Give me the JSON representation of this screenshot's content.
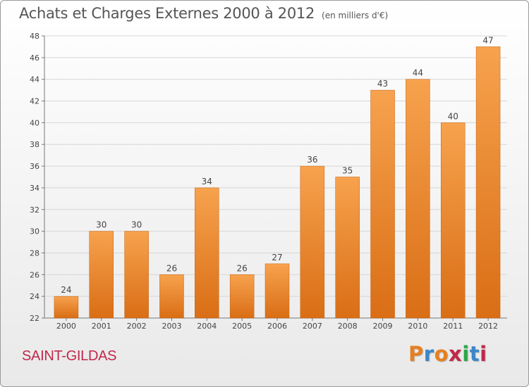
{
  "header": {
    "title": "Achats et Charges Externes 2000 à 2012",
    "subtitle": "(en milliers d'€)"
  },
  "footer": {
    "commune": "SAINT-GILDAS",
    "brand": "Proxiti"
  },
  "colors": {
    "bar_light": "#f7a24e",
    "bar_dark": "#d96e15",
    "commune_text": "#c0284a",
    "logo_letters": [
      "#e87f1f",
      "#3a86c8",
      "#e87f1f",
      "#c0284a",
      "#2aa84a",
      "#3a86c8",
      "#c0284a"
    ]
  },
  "chart_data": {
    "type": "bar",
    "categories": [
      "2000",
      "2001",
      "2002",
      "2003",
      "2004",
      "2005",
      "2006",
      "2007",
      "2008",
      "2009",
      "2010",
      "2011",
      "2012"
    ],
    "values": [
      24,
      30,
      30,
      26,
      34,
      26,
      27,
      36,
      35,
      43,
      44,
      40,
      47
    ],
    "title": "Achats et Charges Externes 2000 à 2012",
    "ylim": [
      22,
      48
    ],
    "yticks": [
      22,
      24,
      26,
      28,
      30,
      32,
      34,
      36,
      38,
      40,
      42,
      44,
      46,
      48
    ],
    "grid": true,
    "data_labels": true
  }
}
